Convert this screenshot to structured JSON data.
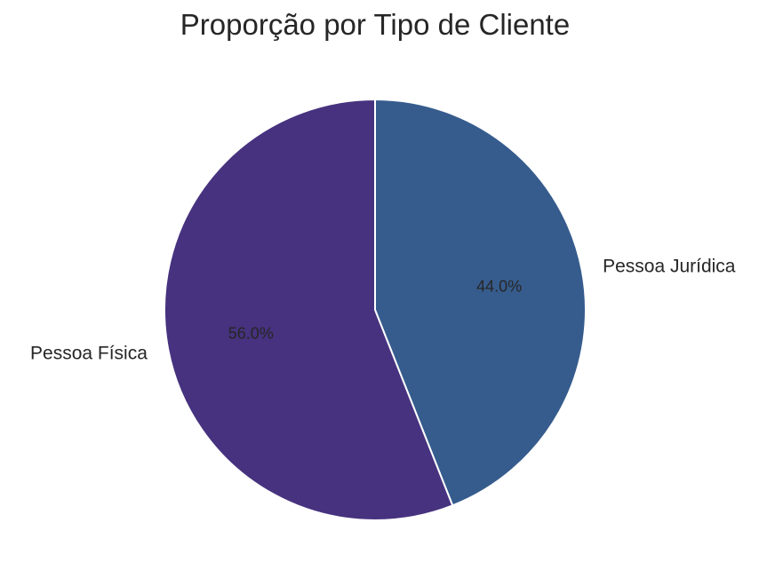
{
  "chart_data": {
    "type": "pie",
    "title": "Proporção por Tipo de Cliente",
    "slices": [
      {
        "label": "Pessoa Jurídica",
        "value": 44.0,
        "pct_label": "44.0%",
        "color": "#365c8d"
      },
      {
        "label": "Pessoa Física",
        "value": 56.0,
        "pct_label": "56.0%",
        "color": "#46327e"
      }
    ],
    "start_angle_deg": 90,
    "direction": "clockwise",
    "edge_color": "#ffffff"
  }
}
